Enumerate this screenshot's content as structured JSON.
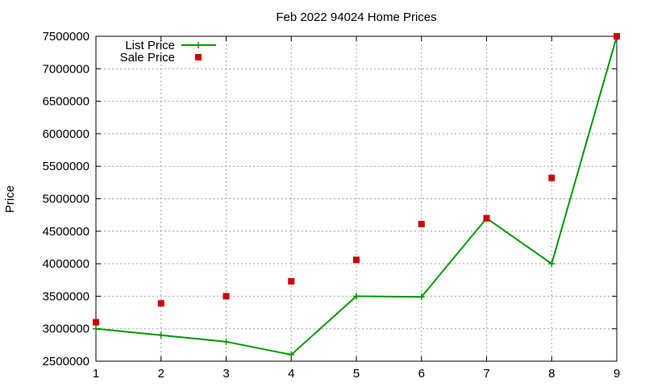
{
  "chart_data": {
    "type": "line",
    "title": "Feb 2022 94024 Home Prices",
    "xlabel": "",
    "ylabel": "Price",
    "xlim": [
      1,
      9
    ],
    "ylim": [
      2500000,
      7500000
    ],
    "x_ticks": [
      1,
      2,
      3,
      4,
      5,
      6,
      7,
      8,
      9
    ],
    "y_ticks": [
      2500000,
      3000000,
      3500000,
      4000000,
      4500000,
      5000000,
      5500000,
      6000000,
      6500000,
      7000000,
      7500000
    ],
    "grid": true,
    "legend_position": "top-left",
    "series": [
      {
        "name": "List Price",
        "style": "line-points",
        "marker": "plus",
        "color": "#009900",
        "x": [
          1,
          2,
          3,
          4,
          5,
          6,
          7,
          8,
          9
        ],
        "y": [
          3000000,
          2900000,
          2800000,
          2600000,
          3500000,
          3490000,
          4700000,
          4000000,
          7500000
        ]
      },
      {
        "name": "Sale Price",
        "style": "points",
        "marker": "square",
        "color": "#cc0000",
        "x": [
          1,
          2,
          3,
          4,
          5,
          6,
          7,
          8,
          9
        ],
        "y": [
          3100000,
          3390000,
          3500000,
          3730000,
          4060000,
          4610000,
          4700000,
          5320000,
          7500000
        ]
      }
    ]
  }
}
